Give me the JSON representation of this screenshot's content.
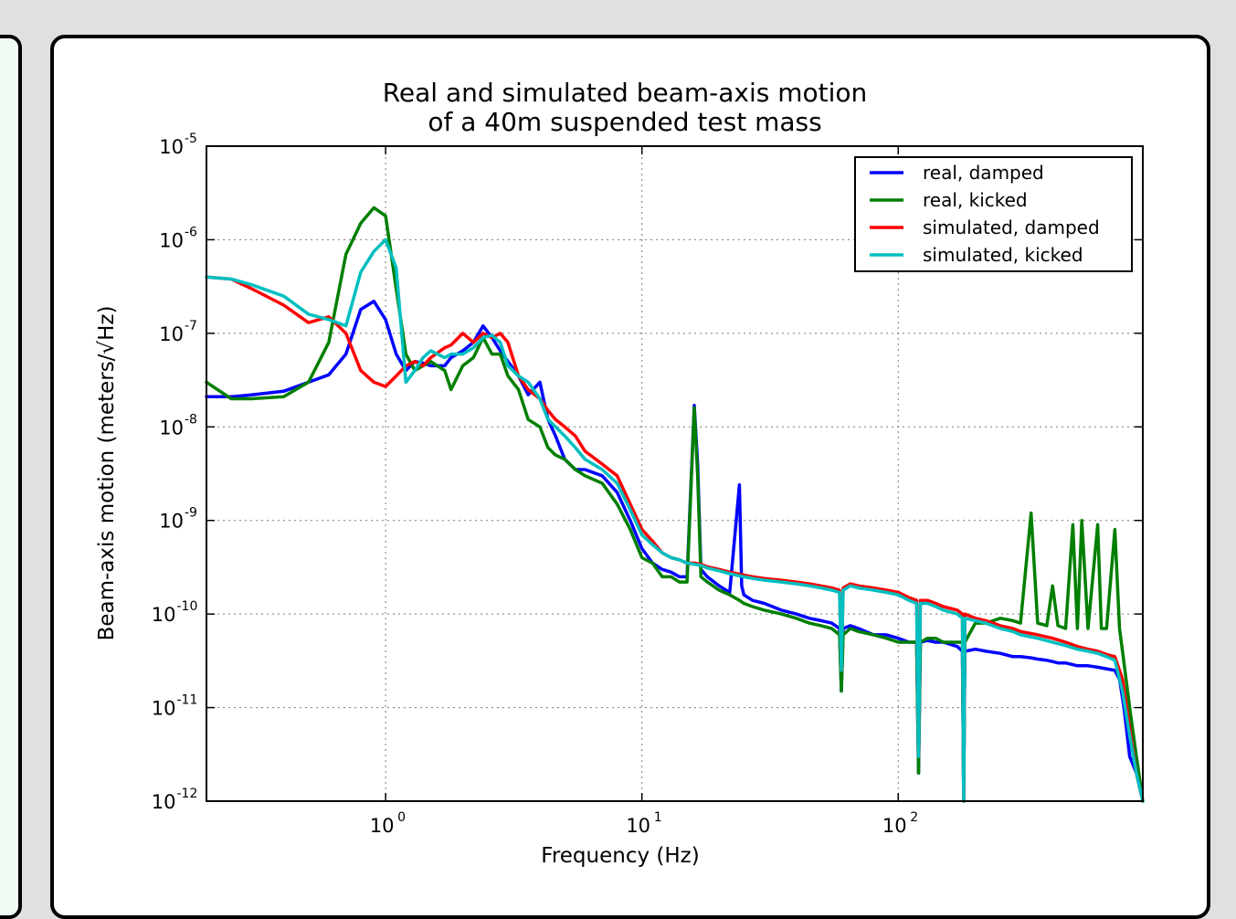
{
  "colors": {
    "page_background": "#e0e0e0",
    "left_panel": "#f0fbf3",
    "panel": "#ffffff",
    "grid": "#7a7a7a"
  },
  "chart_data": {
    "type": "line",
    "title": "Real and simulated beam-axis motion\nof a 40m suspended test mass",
    "title_lines": [
      "Real and simulated beam-axis motion",
      "of a 40m suspended test mass"
    ],
    "xlabel": "Frequency (Hz)",
    "ylabel": "Beam-axis motion (meters/√Hz)",
    "xscale": "log",
    "yscale": "log",
    "xlim": [
      0.2,
      900
    ],
    "ylim": [
      1e-12,
      1e-05
    ],
    "grid": true,
    "legend_placement": "top-right",
    "x_ticks": [
      {
        "base": "10",
        "exp": "0",
        "value": 1
      },
      {
        "base": "10",
        "exp": "1",
        "value": 10
      },
      {
        "base": "10",
        "exp": "2",
        "value": 100
      }
    ],
    "y_ticks": [
      {
        "base": "10",
        "exp": "-5",
        "value": 1e-05
      },
      {
        "base": "10",
        "exp": "-6",
        "value": 1e-06
      },
      {
        "base": "10",
        "exp": "-7",
        "value": 1e-07
      },
      {
        "base": "10",
        "exp": "-8",
        "value": 1e-08
      },
      {
        "base": "10",
        "exp": "-9",
        "value": 1e-09
      },
      {
        "base": "10",
        "exp": "-10",
        "value": 1e-10
      },
      {
        "base": "10",
        "exp": "-11",
        "value": 1e-11
      },
      {
        "base": "10",
        "exp": "-12",
        "value": 1e-12
      }
    ],
    "series": [
      {
        "name": "real, damped",
        "color": "#0000ff",
        "x": [
          0.2,
          0.25,
          0.3,
          0.4,
          0.5,
          0.6,
          0.7,
          0.8,
          0.9,
          1.0,
          1.1,
          1.2,
          1.3,
          1.4,
          1.5,
          1.7,
          1.8,
          2.0,
          2.2,
          2.4,
          2.6,
          2.8,
          3.0,
          3.3,
          3.6,
          4.0,
          4.3,
          4.6,
          5.0,
          5.5,
          6.0,
          7.0,
          8.0,
          9.0,
          10.0,
          11.0,
          12.0,
          13.0,
          14.0,
          15.0,
          16.0,
          16.5,
          17.0,
          18.0,
          20.0,
          22.0,
          24.0,
          24.5,
          25.0,
          27.0,
          30.0,
          35.0,
          40.0,
          45.0,
          50.0,
          55.0,
          59.0,
          60.0,
          61.0,
          65.0,
          70.0,
          80.0,
          90.0,
          100.0,
          110.0,
          118.0,
          120.0,
          122.0,
          130.0,
          140.0,
          150.0,
          170.0,
          178.0,
          180.0,
          182.0,
          200.0,
          220.0,
          250.0,
          280.0,
          300.0,
          330.0,
          350.0,
          380.0,
          400.0,
          420.0,
          450.0,
          500.0,
          550.0,
          600.0,
          650.0,
          700.0,
          730.0,
          760.0,
          800.0,
          850.0,
          900.0
        ],
        "y": [
          2.1e-08,
          2.1e-08,
          2.2e-08,
          2.4e-08,
          3e-08,
          3.6e-08,
          6e-08,
          1.8e-07,
          2.2e-07,
          1.4e-07,
          6e-08,
          4e-08,
          5e-08,
          4.8e-08,
          4.5e-08,
          4.5e-08,
          5.5e-08,
          6.5e-08,
          8e-08,
          1.2e-07,
          9e-08,
          6.5e-08,
          5e-08,
          3.5e-08,
          2.2e-08,
          3e-08,
          1.2e-08,
          8e-09,
          4.5e-09,
          3.5e-09,
          3.5e-09,
          3e-09,
          2e-09,
          1e-09,
          5e-10,
          3.5e-10,
          3e-10,
          2.8e-10,
          2.5e-10,
          2.5e-10,
          1.7e-08,
          4e-09,
          3e-10,
          2.5e-10,
          2e-10,
          1.7e-10,
          2.4e-09,
          2e-10,
          1.6e-10,
          1.4e-10,
          1.3e-10,
          1.1e-10,
          1e-10,
          9e-11,
          8.5e-11,
          8e-11,
          7e-11,
          1.5e-11,
          7e-11,
          7.5e-11,
          7e-11,
          6e-11,
          6e-11,
          5.5e-11,
          5e-11,
          5e-11,
          2e-12,
          5e-11,
          5.2e-11,
          5e-11,
          5e-11,
          4.5e-11,
          4e-11,
          1e-12,
          4e-11,
          4.2e-11,
          4e-11,
          3.8e-11,
          3.5e-11,
          3.5e-11,
          3.4e-11,
          3.3e-11,
          3.2e-11,
          3.1e-11,
          3e-11,
          3e-11,
          2.8e-11,
          2.8e-11,
          2.7e-11,
          2.6e-11,
          2.5e-11,
          2e-11,
          1e-11,
          3e-12,
          2e-12,
          1e-12
        ]
      },
      {
        "name": "real, kicked",
        "color": "#007f00",
        "x": [
          0.2,
          0.25,
          0.3,
          0.4,
          0.5,
          0.6,
          0.7,
          0.8,
          0.9,
          1.0,
          1.1,
          1.2,
          1.3,
          1.4,
          1.5,
          1.7,
          1.8,
          2.0,
          2.2,
          2.4,
          2.6,
          2.8,
          3.0,
          3.3,
          3.6,
          4.0,
          4.3,
          4.6,
          5.0,
          5.5,
          6.0,
          7.0,
          8.0,
          9.0,
          10.0,
          11.0,
          12.0,
          13.0,
          14.0,
          15.0,
          16.0,
          16.5,
          17.0,
          18.0,
          20.0,
          22.0,
          24.0,
          25.0,
          27.0,
          30.0,
          35.0,
          40.0,
          45.0,
          50.0,
          55.0,
          59.0,
          60.0,
          61.0,
          65.0,
          70.0,
          80.0,
          90.0,
          100.0,
          110.0,
          118.0,
          120.0,
          122.0,
          130.0,
          140.0,
          150.0,
          170.0,
          178.0,
          180.0,
          182.0,
          200.0,
          220.0,
          250.0,
          280.0,
          300.0,
          330.0,
          350.0,
          380.0,
          400.0,
          420.0,
          450.0,
          480.0,
          500.0,
          520.0,
          550.0,
          600.0,
          620.0,
          650.0,
          700.0,
          730.0,
          760.0,
          800.0,
          850.0,
          900.0
        ],
        "y": [
          3e-08,
          2e-08,
          2e-08,
          2.1e-08,
          3e-08,
          8e-08,
          7e-07,
          1.5e-06,
          2.2e-06,
          1.8e-06,
          3e-07,
          6e-08,
          4e-08,
          4.5e-08,
          5e-08,
          4e-08,
          2.5e-08,
          4.5e-08,
          5.5e-08,
          9e-08,
          6e-08,
          6e-08,
          3.5e-08,
          2.5e-08,
          1.2e-08,
          1e-08,
          6e-09,
          5e-09,
          4.5e-09,
          3.5e-09,
          3e-09,
          2.5e-09,
          1.5e-09,
          8e-10,
          4e-10,
          3.5e-10,
          2.5e-10,
          2.5e-10,
          2.2e-10,
          2.2e-10,
          1.6e-08,
          3e-09,
          2.5e-10,
          2.2e-10,
          1.8e-10,
          1.6e-10,
          1.4e-10,
          1.3e-10,
          1.2e-10,
          1.1e-10,
          1e-10,
          9e-11,
          8e-11,
          7.5e-11,
          7e-11,
          6e-11,
          1.5e-11,
          6e-11,
          7e-11,
          6.5e-11,
          6e-11,
          5.5e-11,
          5e-11,
          5e-11,
          5e-11,
          2e-12,
          5e-11,
          5.5e-11,
          5.5e-11,
          5e-11,
          5e-11,
          5e-11,
          1e-12,
          5e-11,
          8e-11,
          8e-11,
          9e-11,
          8.5e-11,
          8e-11,
          1.2e-09,
          8e-11,
          7.5e-11,
          2e-10,
          7.5e-11,
          7e-11,
          9e-10,
          7e-11,
          1e-09,
          7e-11,
          9e-10,
          7e-11,
          7e-11,
          8e-10,
          7e-11,
          3e-11,
          1e-11,
          3e-12,
          1e-12
        ]
      },
      {
        "name": "simulated, damped",
        "color": "#ff0000",
        "x": [
          0.2,
          0.25,
          0.3,
          0.4,
          0.5,
          0.6,
          0.7,
          0.8,
          0.9,
          1.0,
          1.1,
          1.2,
          1.3,
          1.4,
          1.5,
          1.7,
          1.8,
          2.0,
          2.2,
          2.4,
          2.6,
          2.8,
          3.0,
          3.3,
          3.6,
          4.0,
          4.3,
          4.6,
          5.0,
          5.5,
          6.0,
          7.0,
          8.0,
          9.0,
          10.0,
          11.0,
          12.0,
          13.0,
          14.0,
          15.0,
          16.0,
          17.0,
          18.0,
          20.0,
          22.0,
          25.0,
          27.0,
          30.0,
          35.0,
          40.0,
          45.0,
          50.0,
          55.0,
          59.0,
          60.0,
          61.0,
          65.0,
          70.0,
          80.0,
          90.0,
          100.0,
          110.0,
          118.0,
          120.0,
          122.0,
          130.0,
          140.0,
          150.0,
          170.0,
          178.0,
          180.0,
          182.0,
          200.0,
          220.0,
          250.0,
          280.0,
          300.0,
          350.0,
          400.0,
          450.0,
          500.0,
          550.0,
          600.0,
          650.0,
          700.0,
          750.0,
          800.0,
          850.0,
          900.0
        ],
        "y": [
          4e-07,
          3.8e-07,
          3e-07,
          2e-07,
          1.3e-07,
          1.5e-07,
          1e-07,
          4e-08,
          3e-08,
          2.7e-08,
          3.5e-08,
          4.5e-08,
          5e-08,
          4.5e-08,
          5.5e-08,
          7e-08,
          7.5e-08,
          1e-07,
          8e-08,
          1e-07,
          9e-08,
          1e-07,
          8e-08,
          3.5e-08,
          2.5e-08,
          2e-08,
          1.5e-08,
          1.2e-08,
          1e-08,
          8e-09,
          5.5e-09,
          4e-09,
          3e-09,
          1.5e-09,
          8e-10,
          6e-10,
          4.5e-10,
          4e-10,
          3.8e-10,
          3.5e-10,
          3.5e-10,
          3.4e-10,
          3.2e-10,
          3e-10,
          2.8e-10,
          2.6e-10,
          2.5e-10,
          2.4e-10,
          2.3e-10,
          2.2e-10,
          2.1e-10,
          2e-10,
          1.9e-10,
          1.8e-10,
          2.5e-11,
          1.9e-10,
          2.1e-10,
          2e-10,
          1.9e-10,
          1.8e-10,
          1.7e-10,
          1.5e-10,
          1.4e-10,
          3e-12,
          1.4e-10,
          1.4e-10,
          1.3e-10,
          1.2e-10,
          1.1e-10,
          1e-10,
          1e-12,
          1e-10,
          9e-11,
          8.5e-11,
          7.5e-11,
          7e-11,
          6.5e-11,
          6e-11,
          5.5e-11,
          5e-11,
          4.5e-11,
          4.2e-11,
          4e-11,
          3.7e-11,
          3.5e-11,
          2e-11,
          6e-12,
          2e-12,
          1e-12
        ]
      },
      {
        "name": "simulated, kicked",
        "color": "#00bfbf",
        "x": [
          0.2,
          0.25,
          0.3,
          0.4,
          0.5,
          0.6,
          0.7,
          0.8,
          0.9,
          1.0,
          1.1,
          1.2,
          1.3,
          1.4,
          1.5,
          1.7,
          1.8,
          2.0,
          2.2,
          2.4,
          2.6,
          2.8,
          3.0,
          3.3,
          3.6,
          4.0,
          4.3,
          4.6,
          5.0,
          5.5,
          6.0,
          7.0,
          8.0,
          9.0,
          10.0,
          11.0,
          12.0,
          13.0,
          14.0,
          15.0,
          16.0,
          17.0,
          18.0,
          20.0,
          22.0,
          25.0,
          27.0,
          30.0,
          35.0,
          40.0,
          45.0,
          50.0,
          55.0,
          59.0,
          60.0,
          61.0,
          65.0,
          70.0,
          80.0,
          90.0,
          100.0,
          110.0,
          118.0,
          120.0,
          122.0,
          130.0,
          140.0,
          150.0,
          170.0,
          178.0,
          180.0,
          182.0,
          200.0,
          220.0,
          250.0,
          280.0,
          300.0,
          350.0,
          400.0,
          450.0,
          500.0,
          550.0,
          600.0,
          650.0,
          700.0,
          750.0,
          800.0,
          850.0,
          900.0
        ],
        "y": [
          4e-07,
          3.8e-07,
          3.3e-07,
          2.5e-07,
          1.6e-07,
          1.4e-07,
          1.2e-07,
          4.5e-07,
          7.5e-07,
          1e-06,
          5e-07,
          3e-08,
          4e-08,
          5.5e-08,
          6.5e-08,
          5.5e-08,
          6e-08,
          6e-08,
          7e-08,
          9e-08,
          9.5e-08,
          8e-08,
          4.5e-08,
          3.5e-08,
          3e-08,
          2e-08,
          1.2e-08,
          1e-08,
          8e-09,
          6e-09,
          4.5e-09,
          3.5e-09,
          2.5e-09,
          1.3e-09,
          7e-10,
          5.5e-10,
          4.5e-10,
          4e-10,
          3.8e-10,
          3.5e-10,
          3.4e-10,
          3.3e-10,
          3.1e-10,
          2.9e-10,
          2.7e-10,
          2.5e-10,
          2.4e-10,
          2.3e-10,
          2.2e-10,
          2.1e-10,
          2e-10,
          1.9e-10,
          1.8e-10,
          1.7e-10,
          2.5e-11,
          1.8e-10,
          2e-10,
          1.9e-10,
          1.8e-10,
          1.7e-10,
          1.6e-10,
          1.4e-10,
          1.3e-10,
          3e-12,
          1.3e-10,
          1.3e-10,
          1.2e-10,
          1.1e-10,
          1e-10,
          9e-11,
          1e-12,
          9e-11,
          8.5e-11,
          8e-11,
          7e-11,
          6.5e-11,
          6e-11,
          5.5e-11,
          5e-11,
          4.6e-11,
          4.2e-11,
          4e-11,
          3.8e-11,
          3.5e-11,
          3.2e-11,
          1.5e-11,
          5e-12,
          2e-12,
          1e-12
        ]
      }
    ]
  }
}
